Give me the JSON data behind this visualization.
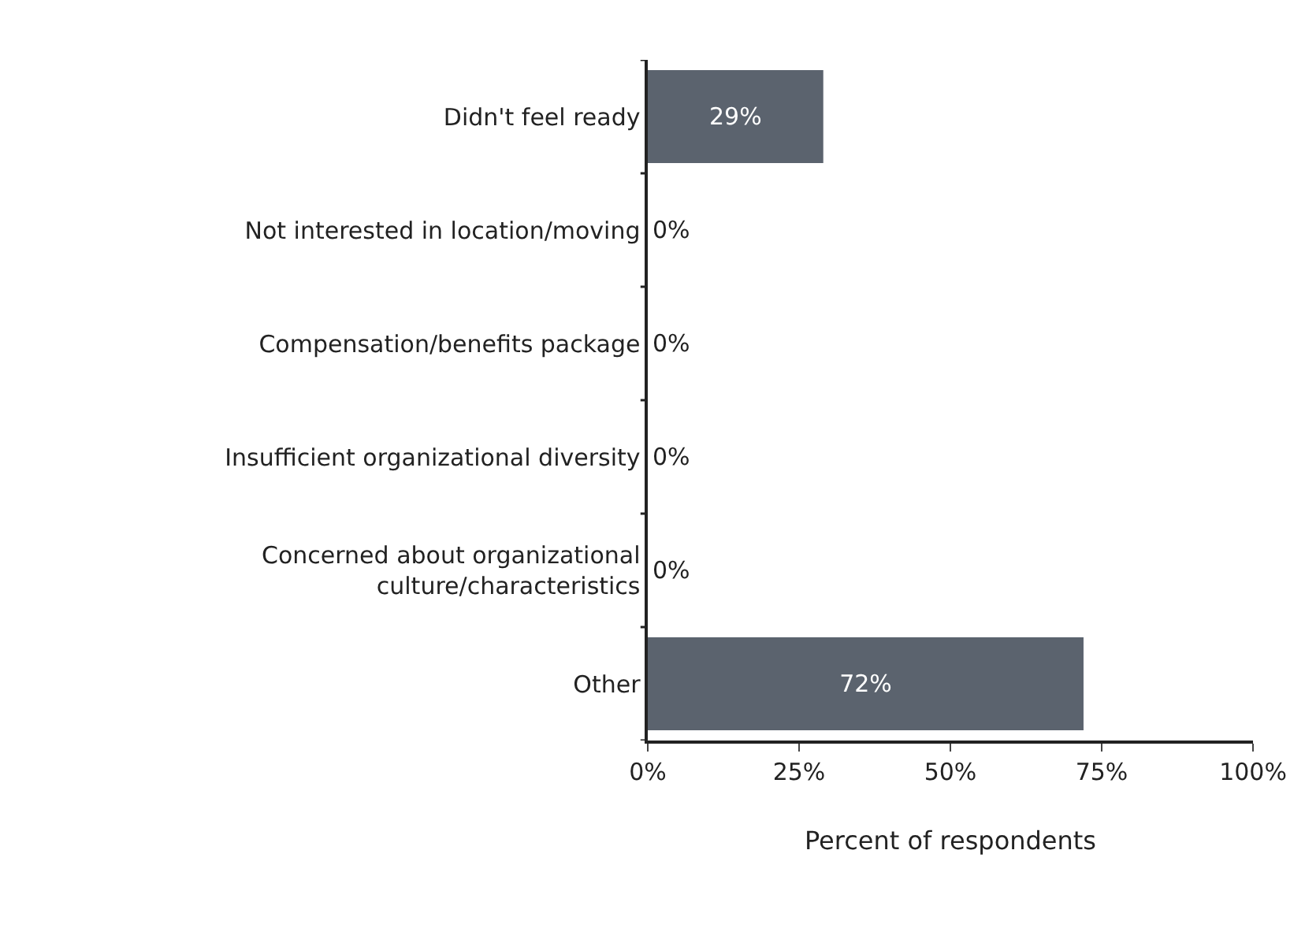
{
  "chart_data": {
    "type": "bar",
    "orientation": "horizontal",
    "xlabel": "Percent of respondents",
    "categories": [
      "Didn't feel ready",
      "Not interested in location/moving",
      "Compensation/benefits package",
      "Insufficient organizational diversity",
      "Concerned about organizational\nculture/characteristics",
      "Other"
    ],
    "values": [
      29,
      0,
      0,
      0,
      0,
      72
    ],
    "value_labels": [
      "29%",
      "0%",
      "0%",
      "0%",
      "0%",
      "72%"
    ],
    "color": "#5b636e",
    "xlim": [
      0,
      100
    ],
    "xticks": [
      {
        "value": 0,
        "label": "0%"
      },
      {
        "value": 25,
        "label": "25%"
      },
      {
        "value": 50,
        "label": "50%"
      },
      {
        "value": 75,
        "label": "75%"
      },
      {
        "value": 100,
        "label": "100%"
      }
    ],
    "legend": false
  }
}
